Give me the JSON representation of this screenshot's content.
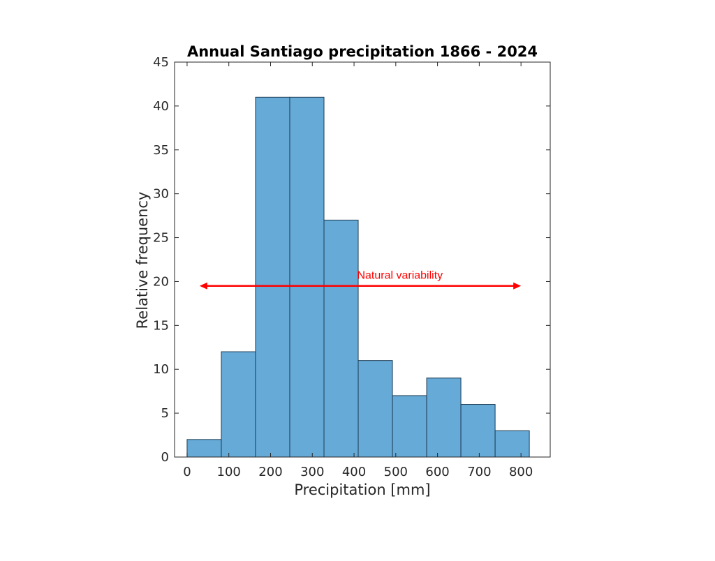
{
  "chart_data": {
    "type": "bar",
    "title": "Annual Santiago precipitation 1866 - 2024",
    "xlabel": "Precipitation [mm]",
    "ylabel": "Relative frequency",
    "bin_edges": [
      0,
      82,
      164,
      246,
      328,
      410,
      492,
      574,
      656,
      738,
      820
    ],
    "values": [
      2,
      12,
      41,
      41,
      27,
      11,
      7,
      9,
      6,
      3
    ],
    "xlim": [
      -30,
      870
    ],
    "ylim": [
      0,
      45
    ],
    "xticks": [
      0,
      100,
      200,
      300,
      400,
      500,
      600,
      700,
      800
    ],
    "yticks": [
      0,
      5,
      10,
      15,
      20,
      25,
      30,
      35,
      40,
      45
    ],
    "grid": false,
    "bar_color": "#66aad7",
    "bar_edge_color": "#1c3a52",
    "annotation": {
      "text": "Natural variability",
      "x_range": [
        30,
        800
      ],
      "y": 19.5,
      "color": "#ff0000"
    }
  }
}
